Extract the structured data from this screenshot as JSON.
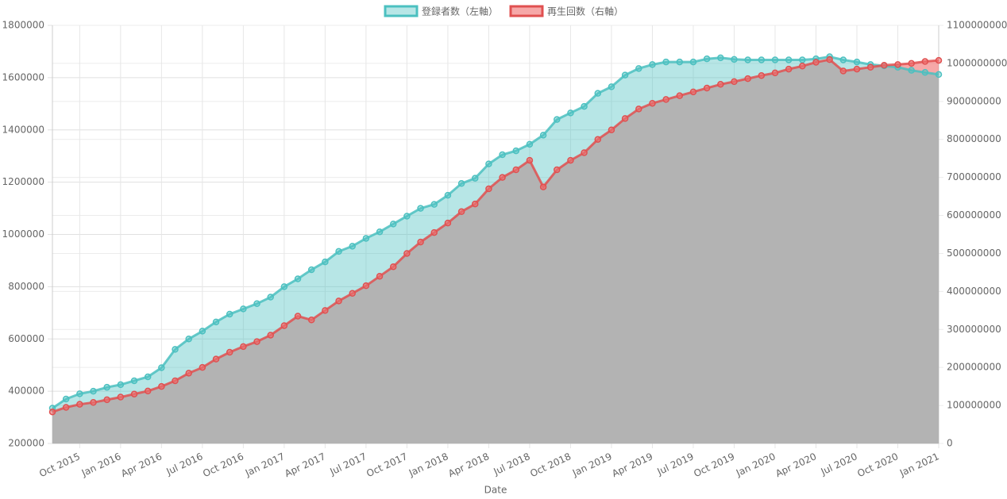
{
  "chart_data": {
    "type": "line",
    "x_title": "Date",
    "x": [
      "2015-08",
      "2015-09",
      "2015-10",
      "2015-11",
      "2015-12",
      "2016-01",
      "2016-02",
      "2016-03",
      "2016-04",
      "2016-05",
      "2016-06",
      "2016-07",
      "2016-08",
      "2016-09",
      "2016-10",
      "2016-11",
      "2016-12",
      "2017-01",
      "2017-02",
      "2017-03",
      "2017-04",
      "2017-05",
      "2017-06",
      "2017-07",
      "2017-08",
      "2017-09",
      "2017-10",
      "2017-11",
      "2017-12",
      "2018-01",
      "2018-02",
      "2018-03",
      "2018-04",
      "2018-05",
      "2018-06",
      "2018-07",
      "2018-08",
      "2018-09",
      "2018-10",
      "2018-11",
      "2018-12",
      "2019-01",
      "2019-02",
      "2019-03",
      "2019-04",
      "2019-05",
      "2019-06",
      "2019-07",
      "2019-08",
      "2019-09",
      "2019-10",
      "2019-11",
      "2019-12",
      "2020-01",
      "2020-02",
      "2020-03",
      "2020-04",
      "2020-05",
      "2020-06",
      "2020-07",
      "2020-08",
      "2020-09",
      "2020-10",
      "2020-11",
      "2020-12",
      "2021-01"
    ],
    "xlim": [
      "2015-08",
      "2021-01"
    ],
    "xticks": [
      {
        "value": "2015-10",
        "label": "Oct 2015"
      },
      {
        "value": "2016-01",
        "label": "Jan 2016"
      },
      {
        "value": "2016-04",
        "label": "Apr 2016"
      },
      {
        "value": "2016-07",
        "label": "Jul 2016"
      },
      {
        "value": "2016-10",
        "label": "Oct 2016"
      },
      {
        "value": "2017-01",
        "label": "Jan 2017"
      },
      {
        "value": "2017-04",
        "label": "Apr 2017"
      },
      {
        "value": "2017-07",
        "label": "Jul 2017"
      },
      {
        "value": "2017-10",
        "label": "Oct 2017"
      },
      {
        "value": "2018-01",
        "label": "Jan 2018"
      },
      {
        "value": "2018-04",
        "label": "Apr 2018"
      },
      {
        "value": "2018-07",
        "label": "Jul 2018"
      },
      {
        "value": "2018-10",
        "label": "Oct 2018"
      },
      {
        "value": "2019-01",
        "label": "Jan 2019"
      },
      {
        "value": "2019-04",
        "label": "Apr 2019"
      },
      {
        "value": "2019-07",
        "label": "Jul 2019"
      },
      {
        "value": "2019-10",
        "label": "Oct 2019"
      },
      {
        "value": "2020-01",
        "label": "Jan 2020"
      },
      {
        "value": "2020-04",
        "label": "Apr 2020"
      },
      {
        "value": "2020-07",
        "label": "Jul 2020"
      },
      {
        "value": "2020-10",
        "label": "Oct 2020"
      },
      {
        "value": "2021-01",
        "label": "Jan 2021"
      }
    ],
    "ylim": [
      200000,
      1800000
    ],
    "yticks": [
      200000,
      400000,
      600000,
      800000,
      1000000,
      1200000,
      1400000,
      1600000,
      1800000
    ],
    "y2lim": [
      0,
      1100000000
    ],
    "y2ticks": [
      0,
      100000000,
      200000000,
      300000000,
      400000000,
      500000000,
      600000000,
      700000000,
      800000000,
      900000000,
      1000000000,
      1100000000
    ],
    "grid": true,
    "legend": "top",
    "overlap_color": "#b3b3b3",
    "series": [
      {
        "name": "登録者数（左軸）",
        "color": "#4bc0c0",
        "fill": "rgba(75,192,192,0.4)",
        "axis": "y",
        "values": [
          335000,
          370000,
          390000,
          400000,
          415000,
          425000,
          440000,
          455000,
          490000,
          560000,
          600000,
          630000,
          665000,
          695000,
          715000,
          735000,
          760000,
          800000,
          830000,
          865000,
          895000,
          935000,
          955000,
          985000,
          1010000,
          1040000,
          1070000,
          1100000,
          1115000,
          1150000,
          1195000,
          1215000,
          1270000,
          1305000,
          1320000,
          1345000,
          1380000,
          1440000,
          1465000,
          1490000,
          1540000,
          1565000,
          1610000,
          1635000,
          1650000,
          1660000,
          1660000,
          1660000,
          1672000,
          1676000,
          1670000,
          1668000,
          1668000,
          1668000,
          1668000,
          1668000,
          1672000,
          1680000,
          1668000,
          1660000,
          1650000,
          1645000,
          1640000,
          1628000,
          1620000,
          1612000
        ]
      },
      {
        "name": "再生回数（右軸）",
        "color": "#e05050",
        "fill": "rgba(240,110,110,0.6)",
        "axis": "y2",
        "values": [
          83000000,
          95000000,
          103000000,
          108000000,
          115000000,
          122000000,
          130000000,
          138000000,
          150000000,
          165000000,
          185000000,
          200000000,
          222000000,
          240000000,
          255000000,
          268000000,
          285000000,
          310000000,
          335000000,
          325000000,
          350000000,
          375000000,
          395000000,
          415000000,
          440000000,
          465000000,
          500000000,
          530000000,
          555000000,
          580000000,
          610000000,
          630000000,
          670000000,
          700000000,
          720000000,
          745000000,
          675000000,
          720000000,
          745000000,
          765000000,
          800000000,
          825000000,
          855000000,
          880000000,
          895000000,
          905000000,
          915000000,
          925000000,
          935000000,
          945000000,
          952000000,
          960000000,
          968000000,
          975000000,
          985000000,
          993000000,
          1003000000,
          1010000000,
          980000000,
          985000000,
          990000000,
          995000000,
          997000000,
          1000000000,
          1005000000,
          1008000000
        ]
      }
    ]
  }
}
